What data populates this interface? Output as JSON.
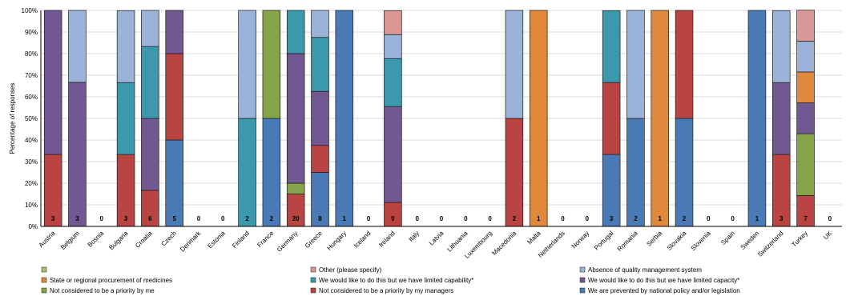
{
  "chart_data": {
    "type": "bar",
    "stacked": true,
    "ylabel": "Percentage of responses",
    "ylim": [
      0,
      100
    ],
    "yticks": [
      "0%",
      "10%",
      "20%",
      "30%",
      "40%",
      "50%",
      "60%",
      "70%",
      "80%",
      "90%",
      "100%"
    ],
    "grid": true,
    "legend_position": "bottom",
    "categories": [
      "Austria",
      "Belgium",
      "Bosnia",
      "Bulgaria",
      "Croatia",
      "Czech",
      "Denmark",
      "Estonia",
      "Finland",
      "France",
      "Germany",
      "Greece",
      "Hungary",
      "Iceland",
      "Ireland",
      "Italy",
      "Latvia",
      "Lithuania",
      "Luxembourg",
      "Macedonia",
      "Malta",
      "Netherlands",
      "Norway",
      "Portugal",
      "Romania",
      "Serbia",
      "Slovakia",
      "Slovenia",
      "Spain",
      "Sweden",
      "Switzerland",
      "Turkey",
      "UK"
    ],
    "counts": [
      "3",
      "3",
      "0",
      "3",
      "6",
      "5",
      "0",
      "0",
      "2",
      "2",
      "20",
      "8",
      "1",
      "0",
      "9",
      "0",
      "0",
      "0",
      "0",
      "2",
      "1",
      "0",
      "0",
      "3",
      "2",
      "1",
      "2",
      "0",
      "0",
      "1",
      "3",
      "7",
      "0"
    ],
    "series": [
      {
        "name": "We are prevented by national policy and/or legislation",
        "color": "#4a7ab5",
        "values": [
          0,
          0,
          0,
          0,
          0,
          40,
          0,
          0,
          0,
          50,
          0,
          25,
          100,
          0,
          0,
          0,
          0,
          0,
          0,
          0,
          0,
          0,
          0,
          33.3,
          50,
          0,
          50,
          0,
          0,
          100,
          0,
          0,
          0
        ]
      },
      {
        "name": "Not considered to be a priority by my managers",
        "color": "#b94441",
        "values": [
          33.3,
          0,
          0,
          33.3,
          16.7,
          40,
          0,
          0,
          0,
          0,
          15,
          12.5,
          0,
          0,
          11.1,
          0,
          0,
          0,
          0,
          50,
          0,
          0,
          0,
          33.3,
          0,
          0,
          50,
          0,
          0,
          0,
          33.3,
          14.3,
          0
        ]
      },
      {
        "name": "Not considered to be a priority by me",
        "color": "#86a44a",
        "values": [
          0,
          0,
          0,
          0,
          0,
          0,
          0,
          0,
          0,
          50,
          5,
          0,
          0,
          0,
          0,
          0,
          0,
          0,
          0,
          0,
          0,
          0,
          0,
          0,
          0,
          0,
          0,
          0,
          0,
          0,
          0,
          28.6,
          0
        ]
      },
      {
        "name": "We would like to do this but we have limited capacity*",
        "color": "#725891",
        "values": [
          66.7,
          66.7,
          0,
          0,
          33.3,
          20,
          0,
          0,
          0,
          0,
          60,
          25,
          0,
          0,
          44.4,
          0,
          0,
          0,
          0,
          0,
          0,
          0,
          0,
          0,
          0,
          0,
          0,
          0,
          0,
          0,
          33.3,
          14.3,
          0
        ]
      },
      {
        "name": "We would like to do this but we have limited capability*",
        "color": "#3c98ad",
        "values": [
          0,
          0,
          0,
          33.3,
          33.3,
          0,
          0,
          0,
          50,
          0,
          20,
          25,
          0,
          0,
          22.2,
          0,
          0,
          0,
          0,
          0,
          0,
          0,
          0,
          33.3,
          0,
          0,
          0,
          0,
          0,
          0,
          0,
          0,
          0
        ]
      },
      {
        "name": "State or regional procurement of medicines",
        "color": "#e0893c",
        "values": [
          0,
          0,
          0,
          0,
          0,
          0,
          0,
          0,
          0,
          0,
          0,
          0,
          0,
          0,
          0,
          0,
          0,
          0,
          0,
          0,
          100,
          0,
          0,
          0,
          0,
          100,
          0,
          0,
          0,
          0,
          0,
          14.3,
          0
        ]
      },
      {
        "name": "Absence of quality management system",
        "color": "#9bb2d9",
        "values": [
          0,
          33.3,
          0,
          33.3,
          16.7,
          0,
          0,
          0,
          50,
          0,
          0,
          12.5,
          0,
          0,
          11.1,
          0,
          0,
          0,
          0,
          50,
          0,
          0,
          0,
          0,
          50,
          0,
          0,
          0,
          0,
          0,
          33.3,
          14.3,
          0
        ]
      },
      {
        "name": "Other (please specify)",
        "color": "#d99795",
        "values": [
          0,
          0,
          0,
          0,
          0,
          0,
          0,
          0,
          0,
          0,
          0,
          0,
          0,
          0,
          11.1,
          0,
          0,
          0,
          0,
          0,
          0,
          0,
          0,
          0,
          0,
          0,
          0,
          0,
          0,
          0,
          0,
          14.3,
          0
        ]
      },
      {
        "name": "",
        "color": "#a9c46a",
        "values": [
          0,
          0,
          0,
          0,
          0,
          0,
          0,
          0,
          0,
          0,
          0,
          0,
          0,
          0,
          0,
          0,
          0,
          0,
          0,
          0,
          0,
          0,
          0,
          0,
          0,
          0,
          0,
          0,
          0,
          0,
          0,
          0,
          0
        ]
      }
    ],
    "legend": [
      {
        "series": 8
      },
      {
        "series": 7
      },
      {
        "series": 6
      },
      {
        "series": 5
      },
      {
        "series": 4
      },
      {
        "series": 3
      },
      {
        "series": 2
      },
      {
        "series": 1
      },
      {
        "series": 0
      }
    ]
  }
}
